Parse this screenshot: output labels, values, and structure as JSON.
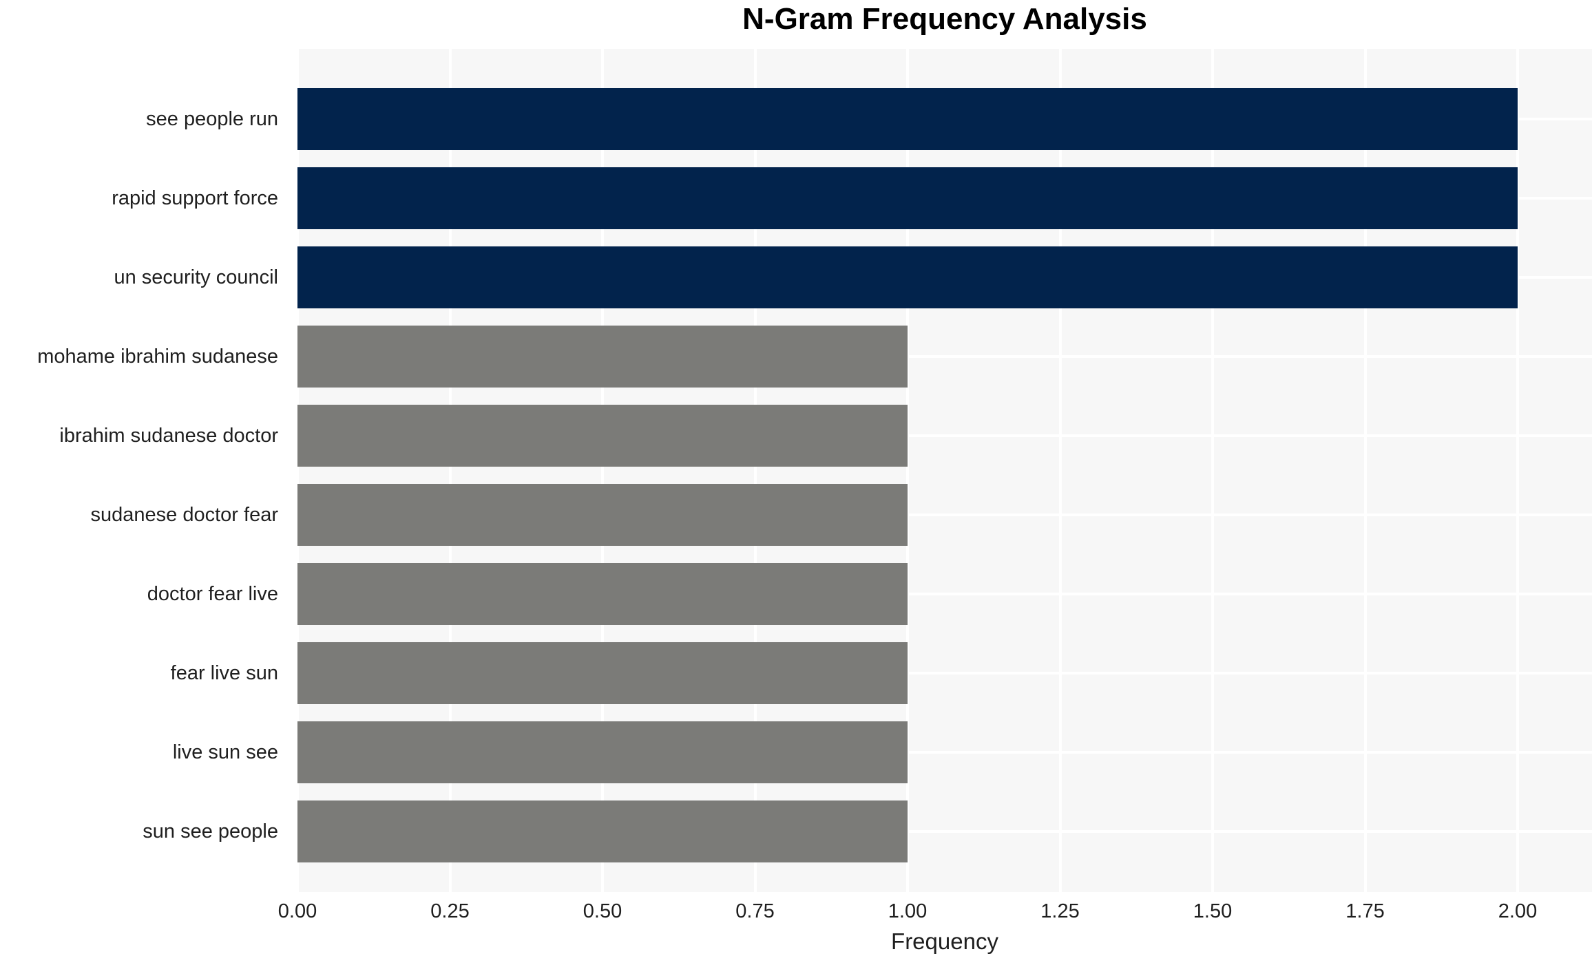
{
  "chart_data": {
    "type": "bar",
    "orientation": "horizontal",
    "title": "N-Gram Frequency Analysis",
    "xlabel": "Frequency",
    "ylabel": "",
    "categories": [
      "see people run",
      "rapid support force",
      "un security council",
      "mohame ibrahim sudanese",
      "ibrahim sudanese doctor",
      "sudanese doctor fear",
      "doctor fear live",
      "fear live sun",
      "live sun see",
      "sun see people"
    ],
    "values": [
      2,
      2,
      2,
      1,
      1,
      1,
      1,
      1,
      1,
      1
    ],
    "bar_colors": [
      "#02234c",
      "#02234c",
      "#02234c",
      "#7b7b78",
      "#7b7b78",
      "#7b7b78",
      "#7b7b78",
      "#7b7b78",
      "#7b7b78",
      "#7b7b78"
    ],
    "xticks": [
      0,
      0.25,
      0.5,
      0.75,
      1.0,
      1.25,
      1.5,
      1.75,
      2.0
    ],
    "xtick_labels": [
      "0.00",
      "0.25",
      "0.50",
      "0.75",
      "1.00",
      "1.25",
      "1.50",
      "1.75",
      "2.00"
    ],
    "xlim": [
      0,
      2.12
    ],
    "grid": true,
    "legend_position": "none",
    "colors": {
      "highlight": "#02234c",
      "default": "#7b7b78",
      "plot_background": "#f7f7f7",
      "gridline": "#ffffff",
      "figure_background": "#ffffff",
      "text": "#1f1f1f"
    }
  }
}
